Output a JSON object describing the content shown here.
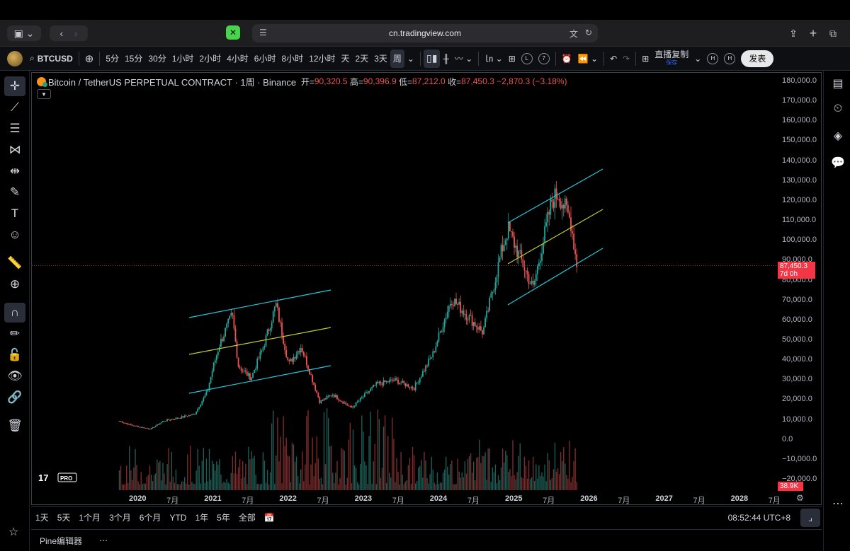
{
  "browser": {
    "url": "cn.tradingview.com"
  },
  "toolbar": {
    "symbol": "BTCUSD",
    "intervals": [
      "5分",
      "15分",
      "30分",
      "1小时",
      "2小时",
      "4小时",
      "6小时",
      "8小时",
      "12小时",
      "天",
      "2天",
      "3天",
      "周"
    ],
    "active_interval": "周",
    "indicator_badges": [
      "L",
      "7"
    ],
    "replay_label": "直播复制",
    "replay_sub": "保存",
    "h_badges": [
      "H",
      "H"
    ],
    "publish_label": "发表"
  },
  "legend": {
    "title": "Bitcoin / TetherUS PERPETUAL CONTRACT · 1周 · Binance",
    "open_label": "开=",
    "open": "90,320.5",
    "high_label": "高=",
    "high": "90,396.9",
    "low_label": "低=",
    "low": "87,212.0",
    "close_label": "收=",
    "close": "87,450.3",
    "change": "−2,870.3 (−3.18%)"
  },
  "chart_data": {
    "type": "candlestick",
    "price_ticks": [
      "180,000.0",
      "170,000.0",
      "160,000.0",
      "150,000.0",
      "140,000.0",
      "130,000.0",
      "120,000.0",
      "110,000.0",
      "100,000.0",
      "90,000.0",
      "80,000.0",
      "70,000.0",
      "60,000.0",
      "50,000.0",
      "40,000.0",
      "30,000.0",
      "20,000.0",
      "10,000.0",
      "0.0",
      "−10,000.0",
      "−20,000.0"
    ],
    "time_labels": [
      {
        "label": "2020",
        "year": true
      },
      {
        "label": "7月",
        "year": false
      },
      {
        "label": "2021",
        "year": true
      },
      {
        "label": "7月",
        "year": false
      },
      {
        "label": "2022",
        "year": true
      },
      {
        "label": "7月",
        "year": false
      },
      {
        "label": "2023",
        "year": true
      },
      {
        "label": "7月",
        "year": false
      },
      {
        "label": "2024",
        "year": true
      },
      {
        "label": "7月",
        "year": false
      },
      {
        "label": "2025",
        "year": true
      },
      {
        "label": "7月",
        "year": false
      },
      {
        "label": "2026",
        "year": true
      },
      {
        "label": "7月",
        "year": false
      },
      {
        "label": "2027",
        "year": true
      },
      {
        "label": "7月",
        "year": false
      },
      {
        "label": "2028",
        "year": true
      },
      {
        "label": "7月",
        "year": false
      }
    ],
    "price_path": [
      [
        "2019-10",
        9500
      ],
      [
        "2019-12",
        7300
      ],
      [
        "2020-03",
        5500
      ],
      [
        "2020-05",
        9500
      ],
      [
        "2020-08",
        11500
      ],
      [
        "2020-10",
        13000
      ],
      [
        "2020-12",
        24000
      ],
      [
        "2021-01",
        37000
      ],
      [
        "2021-02",
        48000
      ],
      [
        "2021-04",
        63000
      ],
      [
        "2021-05",
        37000
      ],
      [
        "2021-07",
        31000
      ],
      [
        "2021-09",
        47000
      ],
      [
        "2021-11",
        68000
      ],
      [
        "2022-01",
        38000
      ],
      [
        "2022-03",
        47000
      ],
      [
        "2022-06",
        19000
      ],
      [
        "2022-08",
        23000
      ],
      [
        "2022-11",
        16000
      ],
      [
        "2023-03",
        28000
      ],
      [
        "2023-06",
        30000
      ],
      [
        "2023-09",
        26000
      ],
      [
        "2023-12",
        43000
      ],
      [
        "2024-03",
        71000
      ],
      [
        "2024-08",
        54000
      ],
      [
        "2024-11",
        95000
      ],
      [
        "2024-12",
        106000
      ],
      [
        "2025-04",
        76000
      ],
      [
        "2025-07",
        120000
      ],
      [
        "2025-08",
        124000
      ],
      [
        "2025-10",
        110000
      ],
      [
        "2025-11",
        87450
      ]
    ],
    "last_price": "87,450.3",
    "last_price_countdown": "7d 0h",
    "volume_last": "38.9K",
    "channels": [
      {
        "name": "2021-2022 channel",
        "color": "#26c6da"
      },
      {
        "name": "2024-2025 channel",
        "color": "#26c6da"
      }
    ],
    "colors": {
      "up": "#26a69a",
      "down": "#ef5350",
      "channel": "#26c6da",
      "mid": "#c0ca33"
    }
  },
  "range": {
    "items": [
      "1天",
      "5天",
      "1个月",
      "3个月",
      "6个月",
      "YTD",
      "1年",
      "5年",
      "全部"
    ],
    "clock": "08:52:44 UTC+8"
  },
  "pine": {
    "label": "Pine编辑器",
    "more": "⋯"
  }
}
